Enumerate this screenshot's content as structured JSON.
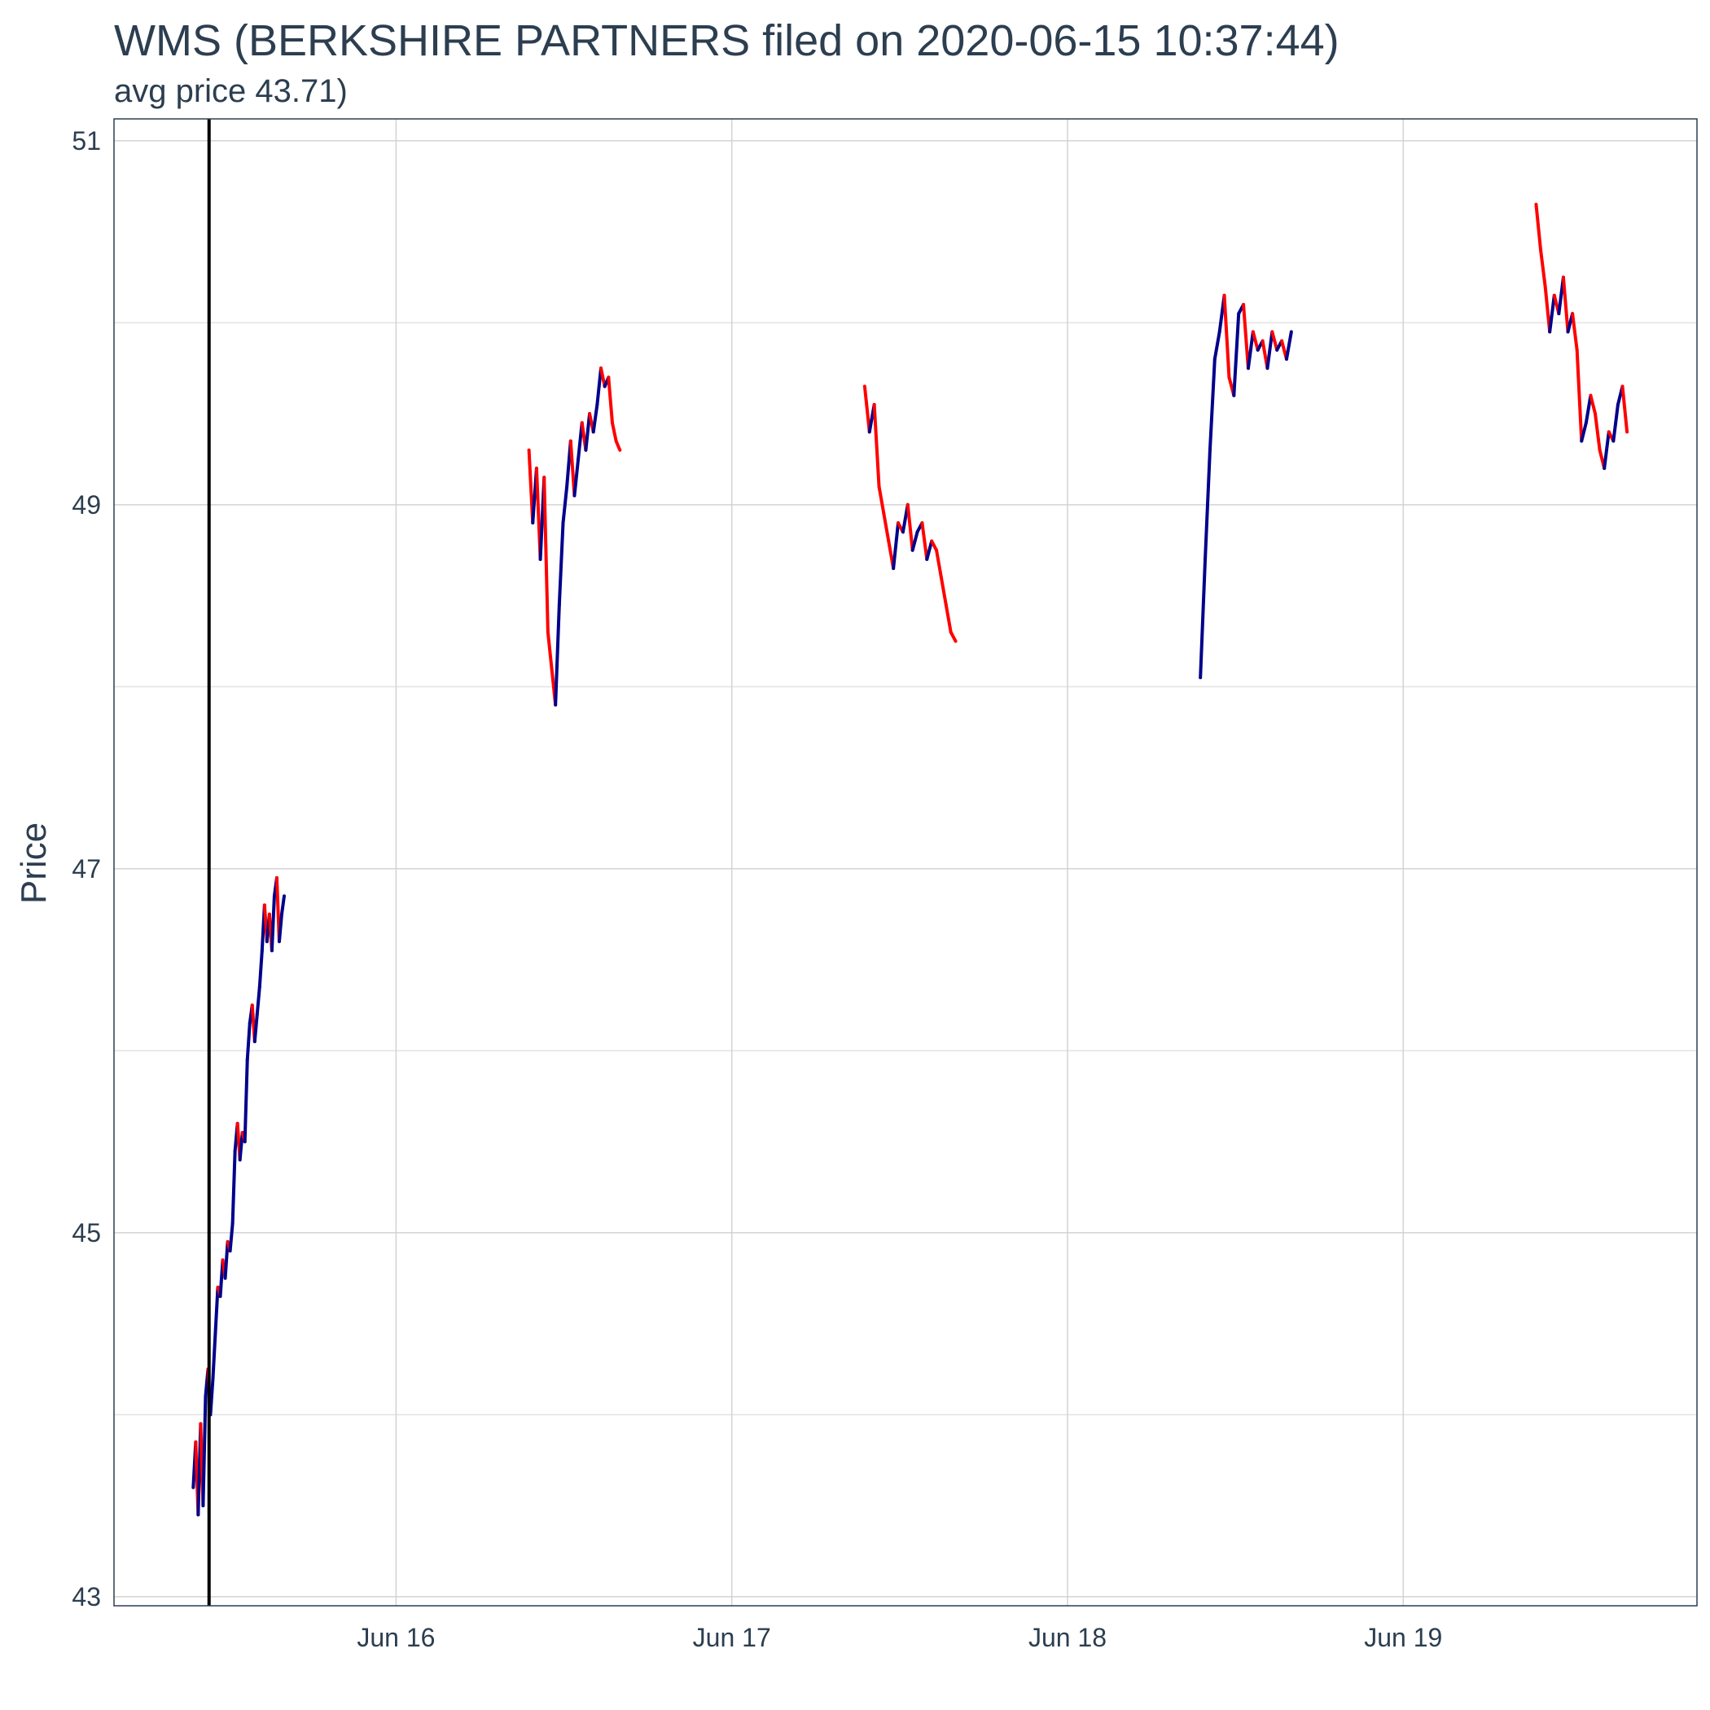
{
  "chart_data": {
    "type": "line",
    "title": "WMS (BERKSHIRE PARTNERS filed on 2020-06-15 10:37:44)",
    "subtitle": "avg price 43.71)",
    "xlabel": "",
    "ylabel": "Price",
    "ylim": [
      42.95,
      51.12
    ],
    "xlim": [
      "2020-06-15T03:50",
      "2020-06-19T21:00"
    ],
    "y_ticks": [
      43,
      45,
      47,
      49,
      51
    ],
    "x_ticks": [
      {
        "label": "Jun 16",
        "value": "2020-06-16T00:00"
      },
      {
        "label": "Jun 17",
        "value": "2020-06-17T00:00"
      },
      {
        "label": "Jun 18",
        "value": "2020-06-18T00:00"
      },
      {
        "label": "Jun 19",
        "value": "2020-06-19T00:00"
      }
    ],
    "grid": true,
    "marker_line": {
      "x": "2020-06-15T10:37:44",
      "color": "#000000"
    },
    "colors": {
      "up": "#00008b",
      "down": "#ff0000"
    },
    "sessions": [
      {
        "start": "2020-06-15T09:30",
        "end": "2020-06-15T16:00",
        "prices": [
          43.6,
          43.85,
          43.45,
          43.95,
          43.5,
          44.1,
          44.25,
          44.0,
          44.2,
          44.45,
          44.7,
          44.65,
          44.85,
          44.75,
          44.95,
          44.9,
          45.05,
          45.45,
          45.6,
          45.4,
          45.55,
          45.5,
          45.95,
          46.15,
          46.25,
          46.05,
          46.2,
          46.35,
          46.55,
          46.8,
          46.6,
          46.75,
          46.55,
          46.85,
          46.95,
          46.6,
          46.75,
          46.85
        ]
      },
      {
        "start": "2020-06-16T09:30",
        "end": "2020-06-16T16:00",
        "prices": [
          49.3,
          48.9,
          49.2,
          48.7,
          49.15,
          48.3,
          48.1,
          47.9,
          48.45,
          48.9,
          49.1,
          49.35,
          49.05,
          49.25,
          49.45,
          49.3,
          49.5,
          49.4,
          49.55,
          49.75,
          49.65,
          49.7,
          49.45,
          49.35,
          49.3
        ]
      },
      {
        "start": "2020-06-17T09:30",
        "end": "2020-06-17T16:00",
        "prices": [
          49.65,
          49.4,
          49.55,
          49.1,
          48.95,
          48.8,
          48.65,
          48.9,
          48.85,
          49.0,
          48.75,
          48.85,
          48.9,
          48.7,
          48.8,
          48.75,
          48.6,
          48.45,
          48.3,
          48.25
        ]
      },
      {
        "start": "2020-06-18T09:30",
        "end": "2020-06-18T16:00",
        "prices": [
          48.05,
          48.7,
          49.3,
          49.8,
          49.95,
          50.15,
          49.7,
          49.6,
          50.05,
          50.1,
          49.75,
          49.95,
          49.85,
          49.9,
          49.75,
          49.95,
          49.85,
          49.9,
          49.8,
          49.95
        ]
      },
      {
        "start": "2020-06-19T09:30",
        "end": "2020-06-19T16:00",
        "prices": [
          50.65,
          50.4,
          50.2,
          49.95,
          50.15,
          50.05,
          50.25,
          49.95,
          50.05,
          49.85,
          49.35,
          49.45,
          49.6,
          49.5,
          49.3,
          49.2,
          49.4,
          49.35,
          49.55,
          49.65,
          49.4
        ]
      }
    ]
  }
}
